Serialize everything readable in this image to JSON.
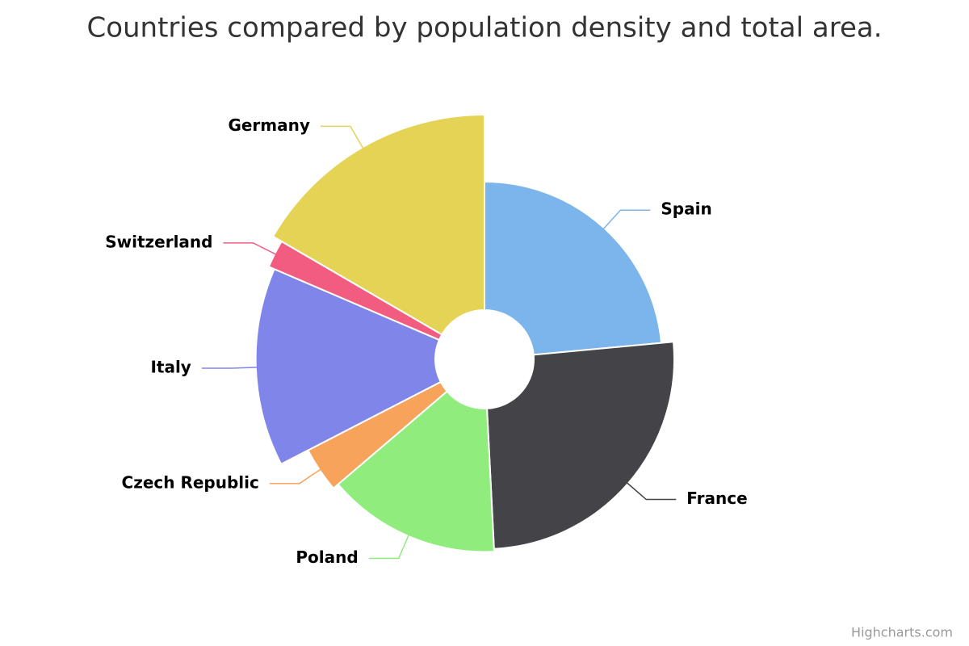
{
  "chart_data": {
    "type": "variablepie",
    "title": "Countries compared by population density and total area.",
    "credits": "Highcharts.com",
    "categories": [
      "Spain",
      "France",
      "Poland",
      "Czech Republic",
      "Italy",
      "Switzerland",
      "Germany"
    ],
    "series": [
      {
        "name": "Total area",
        "values": [
          505370,
          551500,
          312685,
          78867,
          301340,
          41277,
          357022
        ]
      },
      {
        "name": "Population density",
        "values": [
          92.9,
          118.7,
          124.6,
          137.5,
          201.8,
          214.5,
          235.6
        ]
      }
    ],
    "colors": [
      "#7cb5ec",
      "#434348",
      "#90ed7d",
      "#f7a35c",
      "#8085e9",
      "#f15c80",
      "#e4d354"
    ]
  }
}
